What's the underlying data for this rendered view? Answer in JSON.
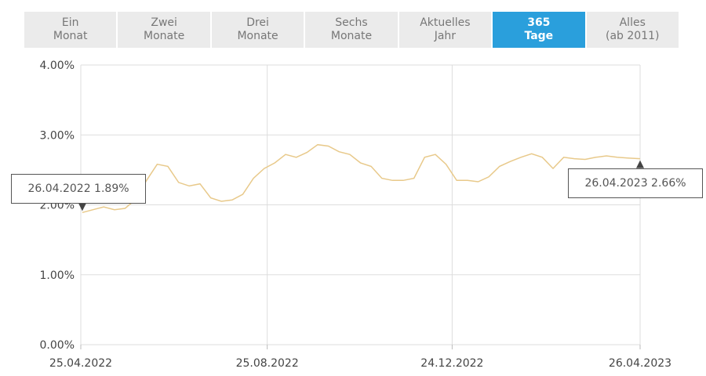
{
  "tabs": [
    {
      "line1": "Ein",
      "line2": "Monat",
      "active": false
    },
    {
      "line1": "Zwei",
      "line2": "Monate",
      "active": false
    },
    {
      "line1": "Drei",
      "line2": "Monate",
      "active": false
    },
    {
      "line1": "Sechs",
      "line2": "Monate",
      "active": false
    },
    {
      "line1": "Aktuelles",
      "line2": "Jahr",
      "active": false
    },
    {
      "line1": "365",
      "line2": "Tage",
      "active": true
    },
    {
      "line1": "Alles",
      "line2": "(ab 2011)",
      "active": false
    }
  ],
  "colors": {
    "line": "#e8c98a",
    "accent": "#2a9fdc",
    "grid": "#dddddd"
  },
  "callouts": {
    "start": {
      "text": "26.04.2022 1.89%"
    },
    "end": {
      "text": "26.04.2023 2.66%"
    }
  },
  "chart_data": {
    "type": "line",
    "title": "",
    "xlabel": "",
    "ylabel": "",
    "ylim": [
      0,
      4
    ],
    "y_ticks": [
      "0.00%",
      "1.00%",
      "2.00%",
      "3.00%",
      "4.00%"
    ],
    "x_ticks": [
      "25.04.2022",
      "25.08.2022",
      "24.12.2022",
      "26.04.2023"
    ],
    "grid": true,
    "series": [
      {
        "x": [
          "2022-04-26",
          "2022-05-03",
          "2022-05-10",
          "2022-05-17",
          "2022-05-24",
          "2022-05-31",
          "2022-06-07",
          "2022-06-14",
          "2022-06-21",
          "2022-06-28",
          "2022-07-05",
          "2022-07-12",
          "2022-07-19",
          "2022-07-26",
          "2022-08-02",
          "2022-08-09",
          "2022-08-16",
          "2022-08-23",
          "2022-08-30",
          "2022-09-06",
          "2022-09-13",
          "2022-09-20",
          "2022-09-27",
          "2022-10-04",
          "2022-10-11",
          "2022-10-18",
          "2022-10-25",
          "2022-11-01",
          "2022-11-08",
          "2022-11-15",
          "2022-11-22",
          "2022-11-29",
          "2022-12-06",
          "2022-12-13",
          "2022-12-20",
          "2022-12-27",
          "2023-01-03",
          "2023-01-10",
          "2023-01-17",
          "2023-01-24",
          "2023-01-31",
          "2023-02-07",
          "2023-02-14",
          "2023-02-21",
          "2023-02-28",
          "2023-03-07",
          "2023-03-14",
          "2023-03-21",
          "2023-03-28",
          "2023-04-04",
          "2023-04-11",
          "2023-04-18",
          "2023-04-26"
        ],
        "y": [
          1.89,
          1.93,
          1.97,
          1.93,
          1.95,
          2.08,
          2.35,
          2.58,
          2.55,
          2.32,
          2.27,
          2.3,
          2.1,
          2.05,
          2.07,
          2.15,
          2.38,
          2.52,
          2.6,
          2.72,
          2.68,
          2.75,
          2.86,
          2.84,
          2.76,
          2.72,
          2.6,
          2.55,
          2.38,
          2.35,
          2.35,
          2.38,
          2.68,
          2.72,
          2.58,
          2.35,
          2.35,
          2.33,
          2.4,
          2.55,
          2.62,
          2.68,
          2.73,
          2.68,
          2.52,
          2.68,
          2.66,
          2.65,
          2.68,
          2.7,
          2.68,
          2.67,
          2.66
        ]
      }
    ]
  }
}
